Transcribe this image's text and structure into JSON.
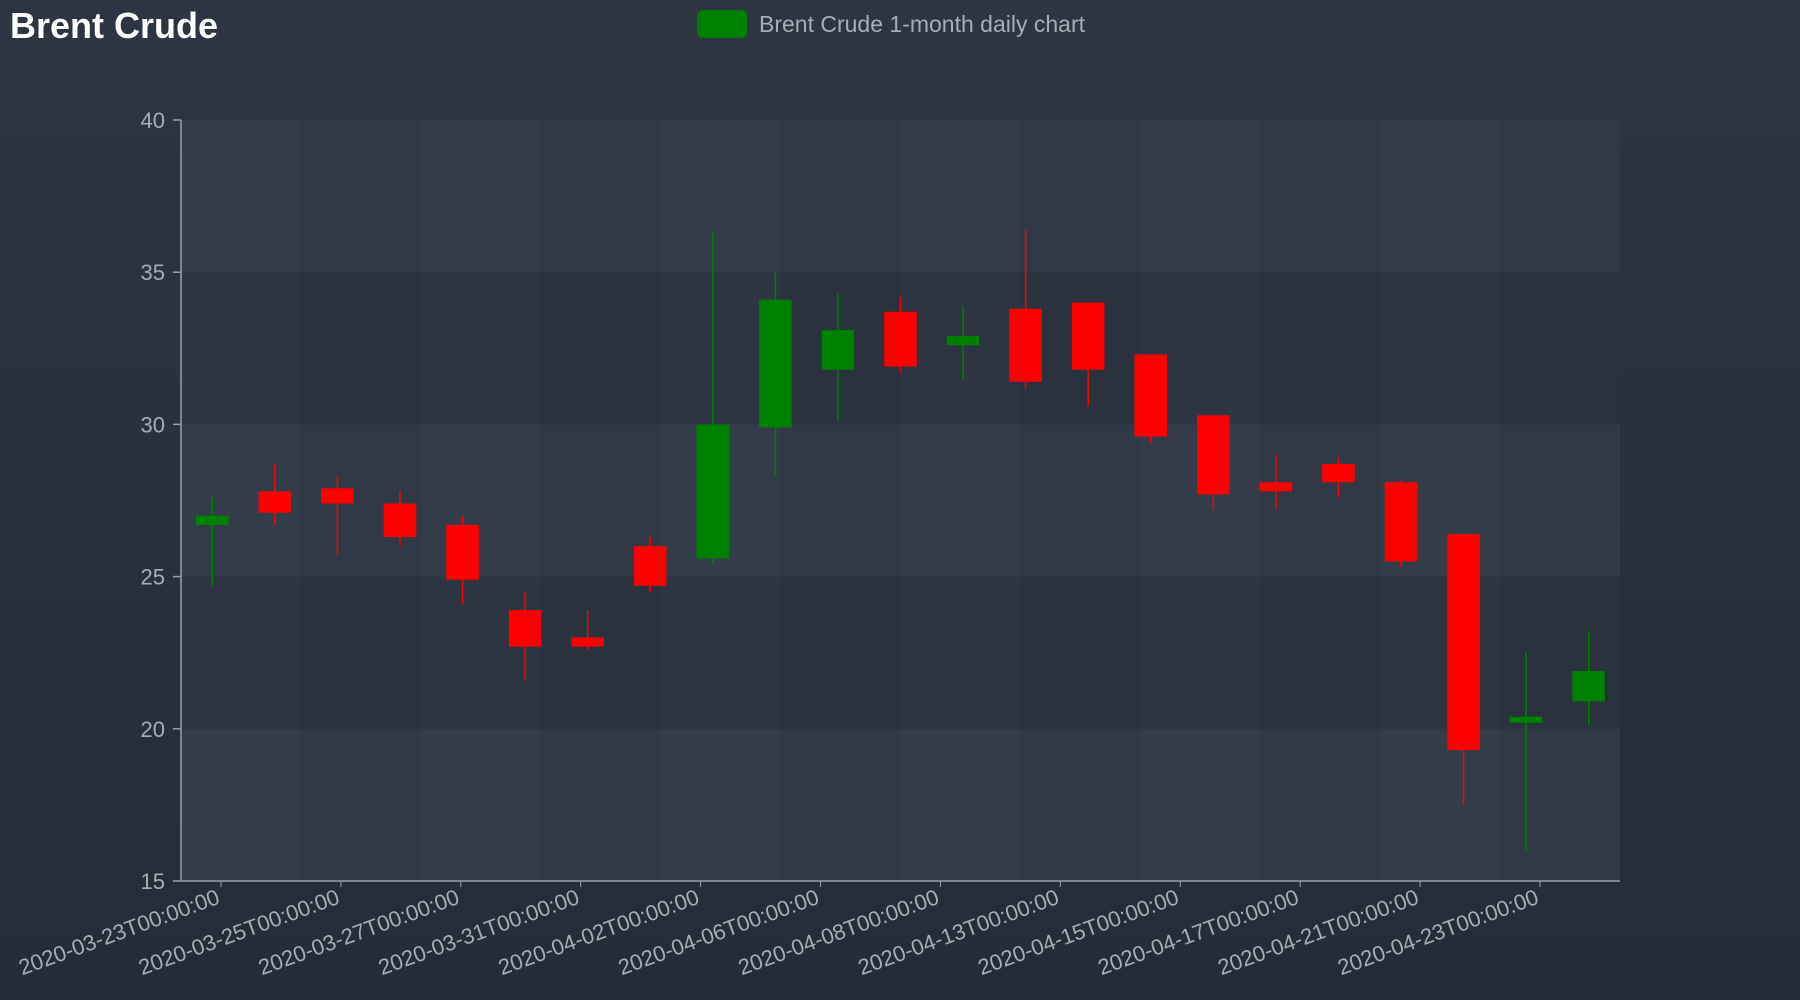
{
  "title": "Brent Crude",
  "colors": {
    "up": "#008000",
    "down": "#ff0000",
    "axis": "#9aa0a8",
    "text": "#a7adb5",
    "title": "#ffffff"
  },
  "chart_data": {
    "type": "candlestick",
    "title": "Brent Crude",
    "legend": {
      "label": "Brent Crude 1-month daily chart",
      "color": "#008000",
      "position": "top-center"
    },
    "ylim": [
      15,
      40
    ],
    "yticks": [
      15,
      20,
      25,
      30,
      35,
      40
    ],
    "grid": true,
    "x_tick_labels": [
      "2020-03-23T00:00:00",
      "2020-03-25T00:00:00",
      "2020-03-27T00:00:00",
      "2020-03-31T00:00:00",
      "2020-04-02T00:00:00",
      "2020-04-06T00:00:00",
      "2020-04-08T00:00:00",
      "2020-04-13T00:00:00",
      "2020-04-15T00:00:00",
      "2020-04-17T00:00:00",
      "2020-04-21T00:00:00",
      "2020-04-23T00:00:00"
    ],
    "candles": [
      {
        "date": "2020-03-23",
        "open": 26.7,
        "high": 27.6,
        "low": 24.7,
        "close": 27.0
      },
      {
        "date": "2020-03-24",
        "open": 27.8,
        "high": 28.7,
        "low": 26.7,
        "close": 27.1
      },
      {
        "date": "2020-03-25",
        "open": 27.9,
        "high": 28.3,
        "low": 25.7,
        "close": 27.4
      },
      {
        "date": "2020-03-26",
        "open": 27.4,
        "high": 27.8,
        "low": 26.0,
        "close": 26.3
      },
      {
        "date": "2020-03-27",
        "open": 26.7,
        "high": 27.0,
        "low": 24.1,
        "close": 24.9
      },
      {
        "date": "2020-03-30",
        "open": 23.9,
        "high": 24.5,
        "low": 21.6,
        "close": 22.7
      },
      {
        "date": "2020-03-31",
        "open": 23.0,
        "high": 23.9,
        "low": 22.6,
        "close": 22.7
      },
      {
        "date": "2020-04-01",
        "open": 26.0,
        "high": 26.3,
        "low": 24.5,
        "close": 24.7
      },
      {
        "date": "2020-04-02",
        "open": 25.6,
        "high": 36.3,
        "low": 25.4,
        "close": 30.0
      },
      {
        "date": "2020-04-03",
        "open": 29.9,
        "high": 35.0,
        "low": 28.3,
        "close": 34.1
      },
      {
        "date": "2020-04-06",
        "open": 31.8,
        "high": 34.3,
        "low": 30.1,
        "close": 33.1
      },
      {
        "date": "2020-04-07",
        "open": 33.7,
        "high": 34.2,
        "low": 31.7,
        "close": 31.9
      },
      {
        "date": "2020-04-08",
        "open": 32.6,
        "high": 33.9,
        "low": 31.5,
        "close": 32.9
      },
      {
        "date": "2020-04-09",
        "open": 33.8,
        "high": 36.4,
        "low": 31.2,
        "close": 31.4
      },
      {
        "date": "2020-04-13",
        "open": 34.0,
        "high": 34.0,
        "low": 30.6,
        "close": 31.8
      },
      {
        "date": "2020-04-14",
        "open": 32.3,
        "high": 32.3,
        "low": 29.4,
        "close": 29.6
      },
      {
        "date": "2020-04-15",
        "open": 30.3,
        "high": 30.3,
        "low": 27.2,
        "close": 27.7
      },
      {
        "date": "2020-04-16",
        "open": 28.1,
        "high": 29.0,
        "low": 27.2,
        "close": 27.8
      },
      {
        "date": "2020-04-17",
        "open": 28.7,
        "high": 28.9,
        "low": 27.6,
        "close": 28.1
      },
      {
        "date": "2020-04-20",
        "open": 28.1,
        "high": 28.2,
        "low": 25.3,
        "close": 25.5
      },
      {
        "date": "2020-04-21",
        "open": 26.4,
        "high": 26.4,
        "low": 17.5,
        "close": 19.3
      },
      {
        "date": "2020-04-22",
        "open": 20.2,
        "high": 22.5,
        "low": 16.0,
        "close": 20.4
      },
      {
        "date": "2020-04-23",
        "open": 20.9,
        "high": 23.2,
        "low": 20.1,
        "close": 21.9
      }
    ]
  }
}
